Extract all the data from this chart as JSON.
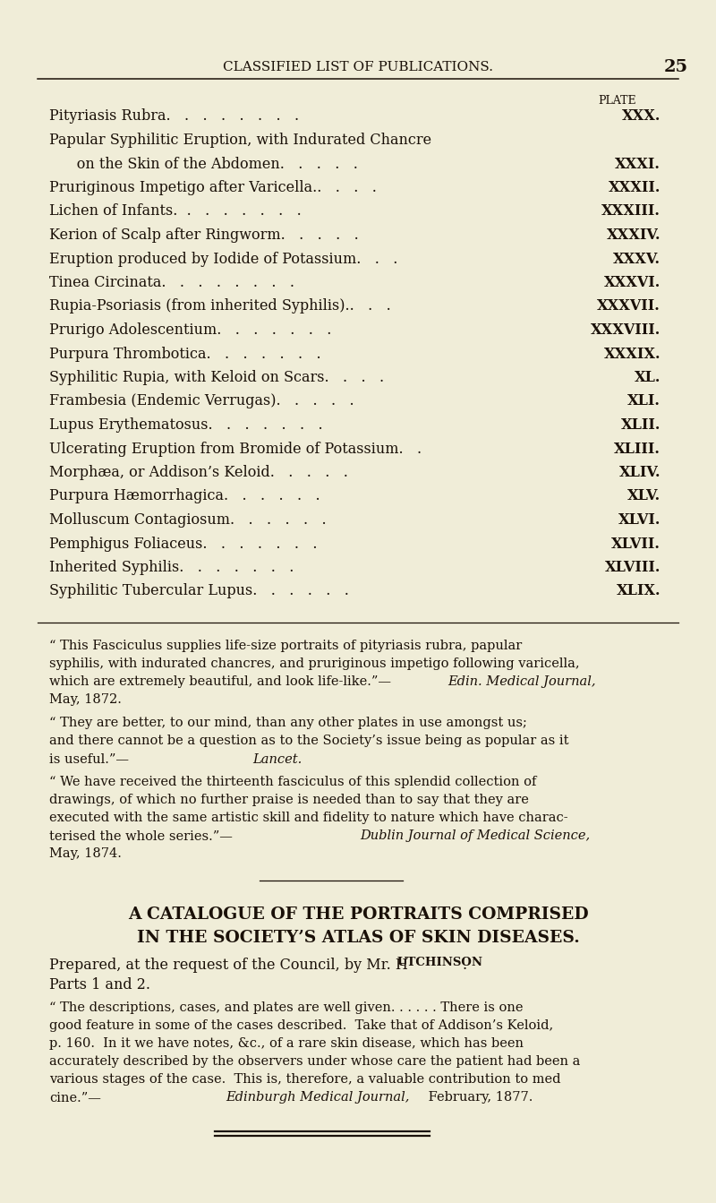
{
  "bg_color": "#f0edd8",
  "text_color": "#1a1008",
  "header_title": "CLASSIFIED LIST OF PUBLICATIONS.",
  "header_page": "25",
  "plate_label": "PLATE",
  "entries": [
    {
      "text": "Pityriasis Rubra.   .   .   .   .   .   .   .",
      "plate": "XXX."
    },
    {
      "text": "Papular Syphilitic Eruption, with Indurated Chancre",
      "plate": ""
    },
    {
      "text": "      on the Skin of the Abdomen.   .   .   .   .",
      "plate": "XXXI."
    },
    {
      "text": "Pruriginous Impetigo after Varicella..   .   .   .",
      "plate": "XXXII."
    },
    {
      "text": "Lichen of Infants.  .   .   .   .   .   .   .",
      "plate": "XXXIII."
    },
    {
      "text": "Kerion of Scalp after Ringworm.   .   .   .   .",
      "plate": "XXXIV."
    },
    {
      "text": "Eruption produced by Iodide of Potassium.   .   .",
      "plate": "XXXV."
    },
    {
      "text": "Tinea Circinata.   .   .   .   .   .   .   .",
      "plate": "XXXVI."
    },
    {
      "text": "Rupia-Psoriasis (from inherited Syphilis)..   .   .",
      "plate": "XXXVII."
    },
    {
      "text": "Prurigo Adolescentium.   .   .   .   .   .   .",
      "plate": "XXXVIII."
    },
    {
      "text": "Purpura Thrombotica.   .   .   .   .   .   .",
      "plate": "XXXIX."
    },
    {
      "text": "Syphilitic Rupia, with Keloid on Scars.   .   .   .",
      "plate": "XL."
    },
    {
      "text": "Frambesia (Endemic Verrugas).   .   .   .   .",
      "plate": "XLI."
    },
    {
      "text": "Lupus Erythematosus.   .   .   .   .   .   .",
      "plate": "XLII."
    },
    {
      "text": "Ulcerating Eruption from Bromide of Potassium.   .",
      "plate": "XLIII."
    },
    {
      "text": "Morphæa, or Addison’s Keloid.   .   .   .   .",
      "plate": "XLIV."
    },
    {
      "text": "Purpura Hæmorrhagica.   .   .   .   .   .",
      "plate": "XLV."
    },
    {
      "text": "Molluscum Contagiosum.   .   .   .   .   .",
      "plate": "XLVI."
    },
    {
      "text": "Pemphigus Foliaceus.   .   .   .   .   .   .",
      "plate": "XLVII."
    },
    {
      "text": "Inherited Syphilis.   .   .   .   .   .   .",
      "plate": "XLVIII."
    },
    {
      "text": "Syphilitic Tubercular Lupus.   .   .   .   .   .",
      "plate": "XLIX."
    }
  ],
  "q1_lines": [
    "“ This Fasciculus supplies life-size portraits of pityriasis rubra, papular",
    "syphilis, with indurated chancres, and pruriginous impetigo following varicella,",
    "which are extremely beautiful, and look life-like.”—"
  ],
  "q1_italic": "Edin. Medical Journal,",
  "q1_after": "May, 1872.",
  "q2_lines": [
    "“ They are better, to our mind, than any other plates in use amongst us;",
    "and there cannot be a question as to the Society’s issue being as popular as it",
    "is useful.”—"
  ],
  "q2_italic": "Lancet.",
  "q3_lines": [
    "“ We have received the thirteenth fasciculus of this splendid collection of",
    "drawings, of which no further praise is needed than to say that they are",
    "executed with the same artistic skill and fidelity to nature which have charac-",
    "terised the whole series.”—"
  ],
  "q3_italic": "Dublin Journal of Medical Science,",
  "q3_after": "May, 1874.",
  "cat_title1": "A CATALOGUE OF THE PORTRAITS COMPRISED",
  "cat_title2": "IN THE SOCIETY’S ATLAS OF SKIN DISEASES.",
  "cat_sub1a": "Prepared, at the request of the Council, by Mr. H",
  "cat_sub1b": "UTCHINSON",
  "cat_sub1c": ".",
  "cat_sub2": "Parts 1 and 2.",
  "cq_lines": [
    "“ The descriptions, cases, and plates are well given. . . . . . There is one",
    "good feature in some of the cases described.  Take that of Addison’s Keloid,",
    "p. 160.  In it we have notes, &c., of a rare skin disease, which has been",
    "accurately described by the observers under whose care the patient had been a",
    "various stages of the case.  This is, therefore, a valuable contribution to med",
    "cine.”—"
  ],
  "cq_italic": "Edinburgh Medical Journal,",
  "cq_after": " February, 1877."
}
